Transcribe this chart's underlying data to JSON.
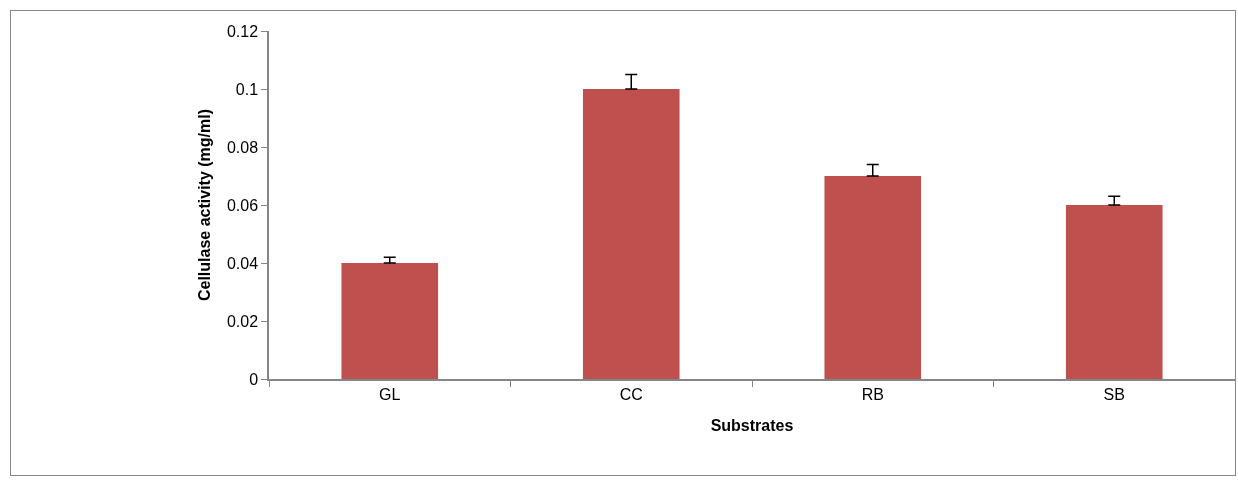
{
  "chart_data": {
    "type": "bar",
    "xlabel": "Substrates",
    "ylabel": "Cellulase activity (mg/ml)",
    "categories": [
      "GL",
      "CC",
      "RB",
      "SB"
    ],
    "values": [
      0.04,
      0.1,
      0.07,
      0.06
    ],
    "errors": [
      [
        0.04,
        0.042
      ],
      [
        0.1,
        0.105
      ],
      [
        0.07,
        0.074
      ],
      [
        0.06,
        0.063
      ]
    ],
    "color": "#c0504d",
    "ylim": [
      0,
      0.12
    ],
    "yticks": [
      0,
      0.02,
      0.04,
      0.06,
      0.08,
      0.1,
      0.12
    ],
    "grid": false,
    "legend": false
  }
}
